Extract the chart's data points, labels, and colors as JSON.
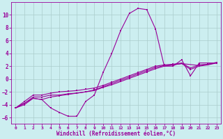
{
  "xlabel": "Windchill (Refroidissement éolien,°C)",
  "bg_color": "#cceef0",
  "line_color": "#990099",
  "grid_color": "#aacccc",
  "xlim": [
    -0.5,
    23.5
  ],
  "ylim": [
    -7,
    12
  ],
  "yticks": [
    -6,
    -4,
    -2,
    0,
    2,
    4,
    6,
    8,
    10
  ],
  "xticks": [
    0,
    1,
    2,
    3,
    4,
    5,
    6,
    7,
    8,
    9,
    10,
    11,
    12,
    13,
    14,
    15,
    16,
    17,
    18,
    19,
    20,
    21,
    22,
    23
  ],
  "line1_x": [
    0,
    1,
    2,
    3,
    4,
    5,
    6,
    7,
    8,
    9,
    10,
    11,
    12,
    13,
    14,
    15,
    16,
    17,
    18,
    19,
    20,
    21,
    22,
    23
  ],
  "line1_y": [
    -4.5,
    -4.0,
    -3.0,
    -3.2,
    -4.5,
    -5.2,
    -5.8,
    -5.8,
    -3.5,
    -2.5,
    1.0,
    4.0,
    7.5,
    10.2,
    11.0,
    10.8,
    7.8,
    2.0,
    2.0,
    3.0,
    0.5,
    2.5,
    2.5,
    2.5
  ],
  "line2_x": [
    0,
    1,
    2,
    3,
    4,
    5,
    6,
    7,
    8,
    9,
    10,
    11,
    12,
    13,
    14,
    15,
    16,
    17,
    18,
    19,
    20,
    21,
    22,
    23
  ],
  "line2_y": [
    -4.5,
    -3.8,
    -2.8,
    -2.8,
    -2.5,
    -2.5,
    -2.3,
    -2.2,
    -2.0,
    -1.8,
    -1.3,
    -0.9,
    -0.4,
    0.1,
    0.6,
    1.1,
    1.6,
    2.0,
    2.2,
    2.4,
    1.5,
    2.0,
    2.2,
    2.5
  ],
  "line3_x": [
    0,
    1,
    2,
    3,
    4,
    5,
    6,
    7,
    8,
    9,
    10,
    11,
    12,
    13,
    14,
    15,
    16,
    17,
    18,
    19,
    20,
    21,
    22,
    23
  ],
  "line3_y": [
    -4.5,
    -3.5,
    -2.5,
    -2.5,
    -2.2,
    -2.0,
    -1.9,
    -1.8,
    -1.6,
    -1.4,
    -1.0,
    -0.5,
    0.0,
    0.5,
    1.0,
    1.5,
    2.0,
    2.2,
    2.3,
    2.5,
    1.7,
    2.2,
    2.3,
    2.6
  ],
  "line4_x": [
    0,
    2,
    3,
    4,
    5,
    6,
    7,
    8,
    9,
    10,
    11,
    12,
    13,
    14,
    15,
    16,
    17,
    18,
    19,
    21,
    22,
    23
  ],
  "line4_y": [
    -4.5,
    -3.0,
    -3.2,
    -2.8,
    -2.6,
    -2.4,
    -2.2,
    -2.0,
    -1.7,
    -1.2,
    -0.7,
    -0.2,
    0.3,
    0.8,
    1.3,
    1.8,
    2.1,
    2.2,
    2.4,
    2.1,
    2.3,
    2.5
  ]
}
